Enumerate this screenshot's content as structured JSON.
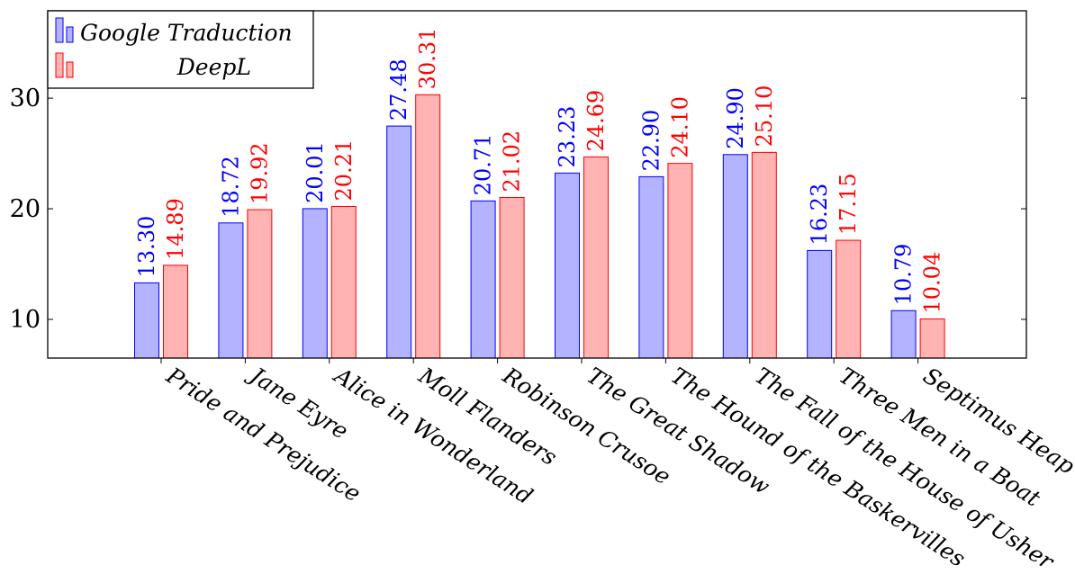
{
  "chart_data": {
    "type": "bar",
    "categories": [
      "Pride and Prejudice",
      "Jane Eyre",
      "Alice in Wonderland",
      "Moll Flanders",
      "Robinson Crusoe",
      "The Great Shadow",
      "The Hound of the Baskervilles",
      "The Fall of the House of Usher",
      "Three Men in a Boat",
      "Septimus Heap"
    ],
    "series": [
      {
        "name": "Google Traduction",
        "values": [
          13.3,
          18.72,
          20.01,
          27.48,
          20.71,
          23.23,
          22.9,
          24.9,
          16.23,
          10.79
        ],
        "labels": [
          "13.30",
          "18.72",
          "20.01",
          "27.48",
          "20.71",
          "23.23",
          "22.90",
          "24.90",
          "16.23",
          "10.79"
        ],
        "color": "#0000ff",
        "fill": "#b3b3ff"
      },
      {
        "name": "DeepL",
        "values": [
          14.89,
          19.92,
          20.21,
          30.31,
          21.02,
          24.69,
          24.1,
          25.1,
          17.15,
          10.04
        ],
        "labels": [
          "14.89",
          "19.92",
          "20.21",
          "30.31",
          "21.02",
          "24.69",
          "24.10",
          "25.10",
          "17.15",
          "10.04"
        ],
        "color": "#ff0000",
        "fill": "#ffb3b3"
      }
    ],
    "yticks": [
      10,
      20,
      30
    ],
    "ylim": [
      6.5,
      37.9
    ],
    "grid": false,
    "legend_position": "top-left",
    "title": "",
    "xlabel": "",
    "ylabel": ""
  }
}
